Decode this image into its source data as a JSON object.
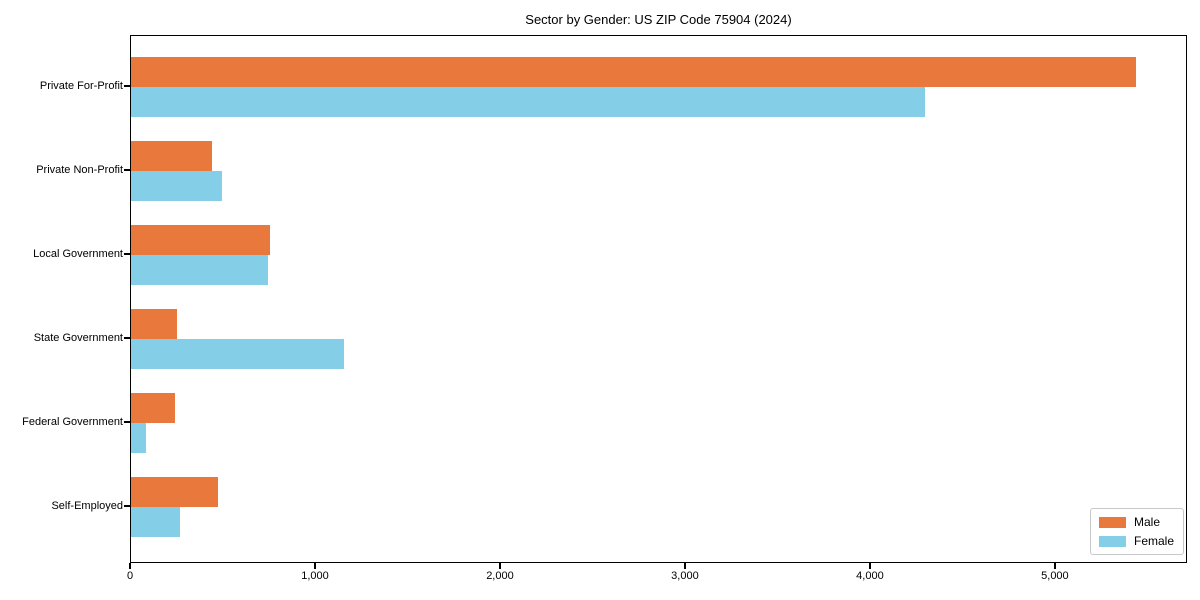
{
  "chart_data": {
    "type": "bar",
    "orientation": "horizontal",
    "title": "Sector by Gender: US ZIP Code 75904 (2024)",
    "categories": [
      "Private For-Profit",
      "Private Non-Profit",
      "Local Government",
      "State Government",
      "Federal Government",
      "Self-Employed"
    ],
    "series": [
      {
        "name": "Male",
        "color": "#e8783c",
        "values": [
          5430,
          440,
          750,
          250,
          240,
          470
        ]
      },
      {
        "name": "Female",
        "color": "#85cee8",
        "values": [
          4290,
          490,
          740,
          1150,
          80,
          265
        ]
      }
    ],
    "xlabel": "",
    "ylabel": "",
    "xlim": [
      0,
      5714
    ],
    "xticks": [
      0,
      1000,
      2000,
      3000,
      4000,
      5000
    ],
    "xtick_labels": [
      "0",
      "1,000",
      "2,000",
      "3,000",
      "4,000",
      "5,000"
    ],
    "grid": false,
    "legend_position": "lower-right"
  }
}
